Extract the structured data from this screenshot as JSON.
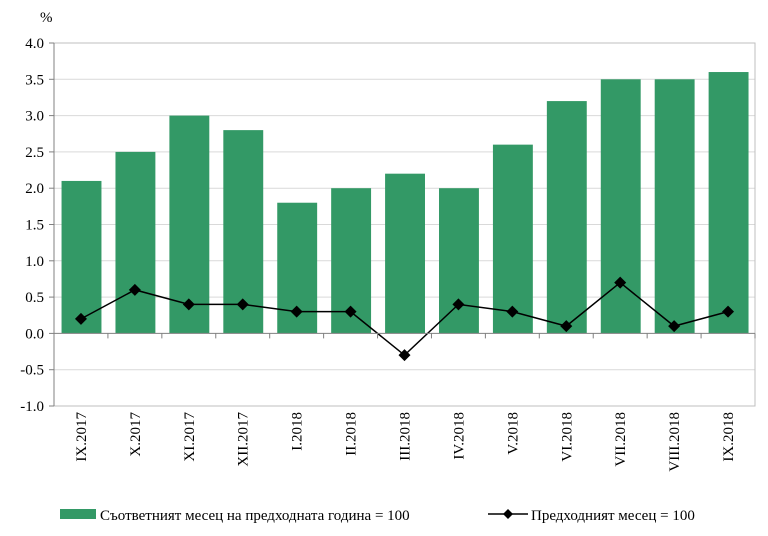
{
  "chart_data": {
    "type": "bar",
    "title": "",
    "ylabel": "%",
    "xlabel": "",
    "ylim": [
      -1.0,
      4.0
    ],
    "ytick_step": 0.5,
    "yticks": [
      "4.0",
      "3.5",
      "3.0",
      "2.5",
      "2.0",
      "1.5",
      "1.0",
      "0.5",
      "0.0",
      "-0.5",
      "-1.0"
    ],
    "grid": true,
    "legend_position": "bottom",
    "categories": [
      "IX.2017",
      "X.2017",
      "XI.2017",
      "XII.2017",
      "I.2018",
      "II.2018",
      "III.2018",
      "IV.2018",
      "V.2018",
      "VI.2018",
      "VII.2018",
      "VIII.2018",
      "IX.2018"
    ],
    "series": [
      {
        "name": "Съответният месец на предходната година = 100",
        "type": "bar",
        "color": "#339966",
        "values": [
          2.1,
          2.5,
          3.0,
          2.8,
          1.8,
          2.0,
          2.2,
          2.0,
          2.6,
          3.2,
          3.5,
          3.5,
          3.6
        ]
      },
      {
        "name": "Предходният месец = 100",
        "type": "line",
        "color": "#000000",
        "values": [
          0.2,
          0.6,
          0.4,
          0.4,
          0.3,
          0.3,
          -0.3,
          0.4,
          0.3,
          0.1,
          0.7,
          0.1,
          0.3
        ]
      }
    ]
  }
}
